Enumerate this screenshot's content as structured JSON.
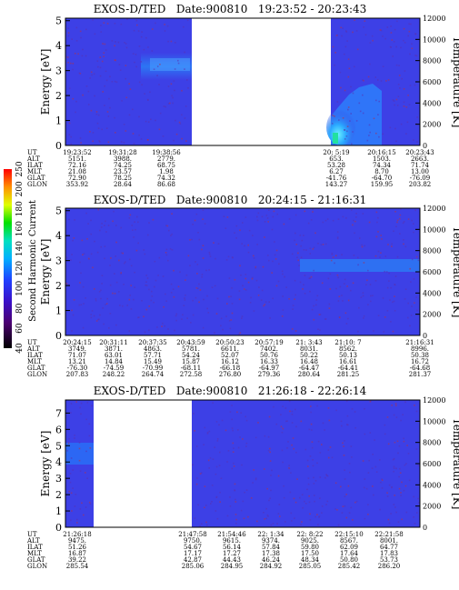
{
  "cbar": {
    "label": "Second Harmonic Current",
    "ticks": [
      "40",
      "60",
      "80",
      "100",
      "120",
      "140",
      "160",
      "180",
      "200",
      "250"
    ]
  },
  "eph_labels": [
    "UT",
    "ALT",
    "ILAT",
    "MLT",
    "GLAT",
    "GLON"
  ],
  "chart_data": [
    {
      "type": "heatmap",
      "title": "EXOS-D/TED   Date:900810   19:23:52 - 20:23:43",
      "ylabel": "Energy [eV]",
      "y2label": "Temperature [K]",
      "yticks": [
        "0",
        "1",
        "2",
        "3",
        "4",
        "5"
      ],
      "y2ticks": [
        "0",
        "2000",
        "4000",
        "6000",
        "8000",
        "10000",
        "12000"
      ],
      "ylim": [
        0,
        5.1
      ],
      "y2lim": [
        0,
        12000
      ],
      "eph": [
        [
          "19:23:52",
          "5151.",
          "72.16",
          "21.08",
          "72.90",
          "353.92"
        ],
        [
          "19:31:28",
          "3988.",
          "74.25",
          "23.57",
          "78.25",
          "28.64"
        ],
        [
          "19:38:56",
          "2779.",
          "68.75",
          "1.98",
          "74.32",
          "86.68"
        ],
        [
          "20: 5:19",
          "653.",
          "53.28",
          "6.27",
          "-41.76",
          "143.27"
        ],
        [
          "20:16:15",
          "1503.",
          "74.34",
          "8.70",
          "-64.70",
          "159.95"
        ],
        [
          "20:23:43",
          "2663.",
          "71.74",
          "13.00",
          "-76.09",
          "203.82"
        ]
      ]
    },
    {
      "type": "heatmap",
      "title": "EXOS-D/TED   Date:900810   20:24:15 - 21:16:31",
      "ylabel": "Energy [eV]",
      "y2label": "Temperature [K]",
      "yticks": [
        "0",
        "1",
        "2",
        "3",
        "4",
        "5"
      ],
      "y2ticks": [
        "0",
        "2000",
        "4000",
        "6000",
        "8000",
        "10000",
        "12000"
      ],
      "ylim": [
        0,
        5.1
      ],
      "y2lim": [
        0,
        12000
      ],
      "eph": [
        [
          "20:24:15",
          "3749.",
          "71.07",
          "13.21",
          "-76.30",
          "207.83"
        ],
        [
          "20:31:11",
          "3871.",
          "63.01",
          "14.84",
          "-74.59",
          "248.22"
        ],
        [
          "20:37:35",
          "4863.",
          "57.71",
          "15.49",
          "-70.99",
          "264.74"
        ],
        [
          "20:43:59",
          "5781.",
          "54.24",
          "15.87",
          "-68.11",
          "272.58"
        ],
        [
          "20:50:23",
          "6611.",
          "52.07",
          "16.12",
          "-66.18",
          "276.80"
        ],
        [
          "20:57:19",
          "7402.",
          "50.76",
          "16.33",
          "-64.97",
          "279.36"
        ],
        [
          "21: 3:43",
          "8031.",
          "50.22",
          "16.48",
          "-64.47",
          "280.64"
        ],
        [
          "21:10: 7",
          "8562.",
          "50.13",
          "16.61",
          "-64.41",
          "281.25"
        ],
        [
          "21:16:31",
          "8996.",
          "50.38",
          "16.72",
          "-64.68",
          "281.37"
        ]
      ]
    },
    {
      "type": "heatmap",
      "title": "EXOS-D/TED   Date:900810   21:26:18 - 22:26:14",
      "ylabel": "Energy [eV]",
      "y2label": "Temperature [K]",
      "yticks": [
        "0",
        "1",
        "2",
        "3",
        "4",
        "5",
        "6",
        "7"
      ],
      "y2ticks": [
        "0",
        "2000",
        "4000",
        "6000",
        "8000",
        "10000",
        "12000"
      ],
      "ylim": [
        0,
        7.8
      ],
      "y2lim": [
        0,
        12000
      ],
      "eph": [
        [
          "21:26:18",
          "9475.",
          "51.26",
          "16.87",
          "39.22",
          "285.54"
        ],
        [
          "21:47:58",
          "9750.",
          "54.67",
          "17.17",
          "42.87",
          "285.06"
        ],
        [
          "21:54:46",
          "9615.",
          "56.14",
          "17.27",
          "44.43",
          "284.95"
        ],
        [
          "22: 1:34",
          "9374.",
          "57.84",
          "17.38",
          "46.24",
          "284.92"
        ],
        [
          "22: 8:22",
          "9025.",
          "59.80",
          "17.50",
          "48.34",
          "285.05"
        ],
        [
          "22:15:10",
          "8567.",
          "62.09",
          "17.64",
          "50.80",
          "285.42"
        ],
        [
          "22:21:58",
          "8001.",
          "64.77",
          "17.83",
          "53.73",
          "286.20"
        ]
      ]
    }
  ]
}
